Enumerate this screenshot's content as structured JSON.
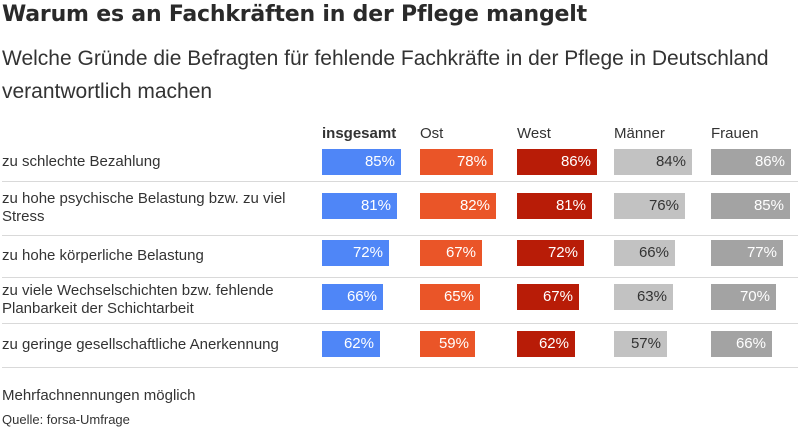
{
  "title": "Warum es an Fachkräften in der Pflege mangelt",
  "subtitle": "Welche Gründe die Befragten für fehlende Fachkräfte in der Pflege in Deutschland verantwortlich machen",
  "footnote": "Mehrfachnennungen möglich",
  "source": "Quelle: forsa-Umfrage",
  "chart_data": {
    "type": "table",
    "title": "Warum es an Fachkräften in der Pflege mangelt",
    "subtitle": "Welche Gründe die Befragten für fehlende Fachkräfte in der Pflege in Deutschland verantwortlich machen",
    "unit": "%",
    "categories": [
      "zu schlechte Bezahlung",
      "zu hohe psychische Belastung bzw. zu viel Stress",
      "zu hohe körperliche Belastung",
      "zu viele Wechselschichten bzw. fehlende Planbarkeit der Schichtarbeit",
      "zu geringe gesellschaftliche Anerkennung"
    ],
    "series": [
      {
        "name": "insgesamt",
        "color": "#4f86f7",
        "text_color": "#ffffff",
        "values": [
          85,
          81,
          72,
          66,
          62
        ]
      },
      {
        "name": "Ost",
        "color": "#ea5528",
        "text_color": "#ffffff",
        "values": [
          78,
          82,
          67,
          65,
          59
        ]
      },
      {
        "name": "West",
        "color": "#b81c07",
        "text_color": "#ffffff",
        "values": [
          86,
          81,
          72,
          67,
          62
        ]
      },
      {
        "name": "Männer",
        "color": "#c2c2c2",
        "text_color": "#333333",
        "values": [
          84,
          76,
          66,
          63,
          57
        ]
      },
      {
        "name": "Frauen",
        "color": "#a3a3a3",
        "text_color": "#ffffff",
        "values": [
          86,
          85,
          77,
          70,
          66
        ]
      }
    ]
  }
}
